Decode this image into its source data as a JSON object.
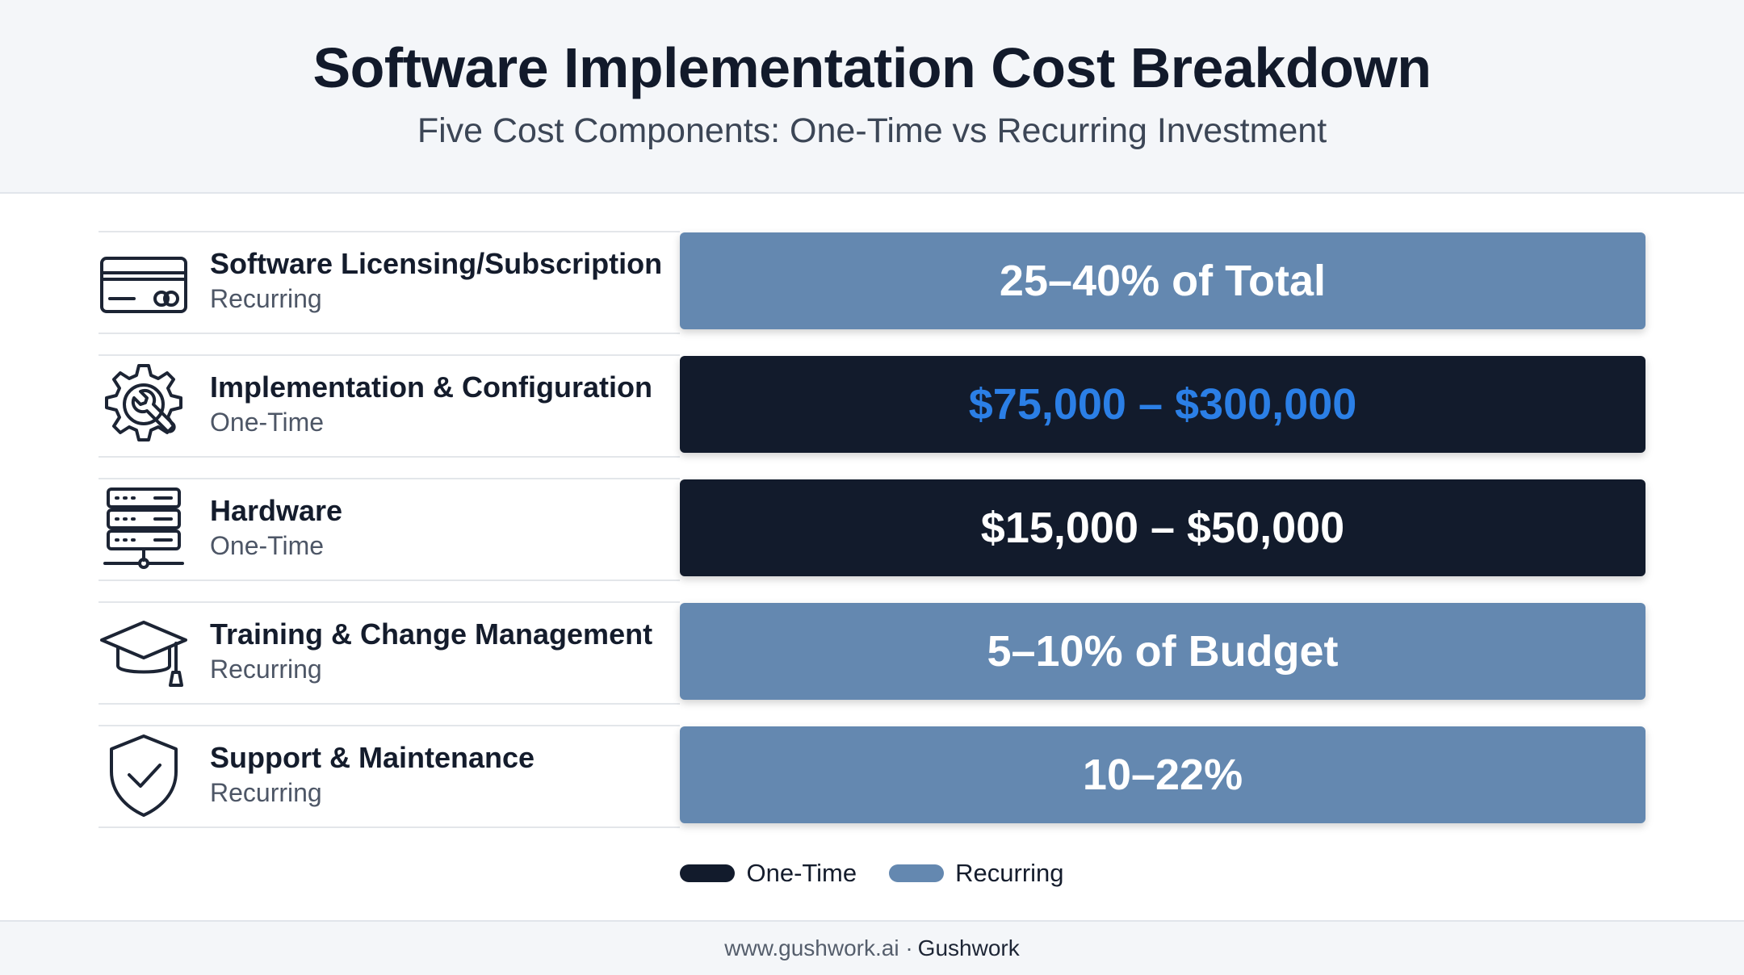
{
  "header": {
    "title": "Software Implementation Cost Breakdown",
    "subtitle": "Five Cost Components: One-Time vs Recurring Investment"
  },
  "colors": {
    "one_time": "#121b2c",
    "recurring": "#6488b0",
    "accent_blue": "#2b7fe6"
  },
  "rows": [
    {
      "name": "Software Licensing/Subscription",
      "type": "Recurring",
      "value": "25–40% of Total",
      "icon": "credit-card-icon"
    },
    {
      "name": "Implementation & Configuration",
      "type": "One-Time",
      "value": "$75,000 – $300,000",
      "icon": "gear-wrench-icon"
    },
    {
      "name": "Hardware",
      "type": "One-Time",
      "value": "$15,000 – $50,000",
      "icon": "server-icon"
    },
    {
      "name": "Training & Change Management",
      "type": "Recurring",
      "value": "5–10% of Budget",
      "icon": "graduation-cap-icon"
    },
    {
      "name": "Support & Maintenance",
      "type": "Recurring",
      "value": "10–22%",
      "icon": "shield-check-icon"
    }
  ],
  "legend": {
    "one_time": "One-Time",
    "recurring": "Recurring"
  },
  "footer": {
    "url": "www.gushwork.ai ·",
    "brand": "Gushwork"
  }
}
